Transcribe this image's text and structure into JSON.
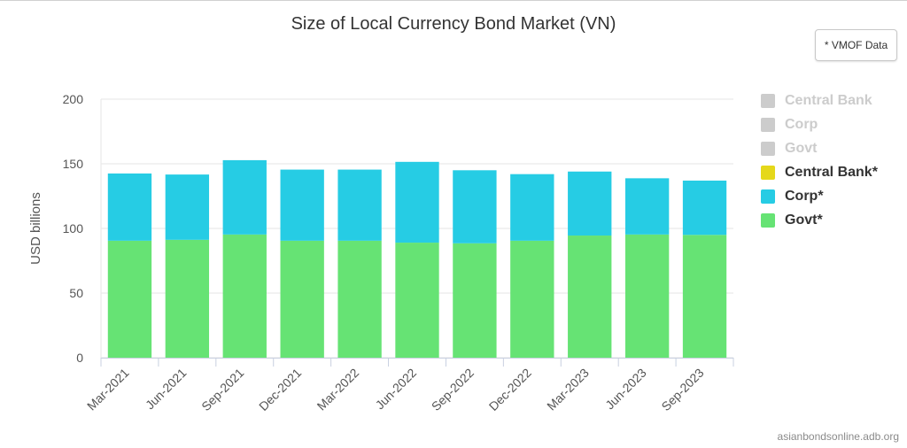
{
  "header": {
    "title": "Size of Local Currency Bond Market (VN)",
    "note_button": "* VMOF Data"
  },
  "footer": {
    "credit": "asianbondsonline.adb.org"
  },
  "colors": {
    "govt": "#66e374",
    "corp": "#26cce4",
    "central_bank": "#e5d81a",
    "inactive": "#cccccc",
    "axis_text": "#555555",
    "grid": "#e6e6e6",
    "axis_line": "#c8d0e0"
  },
  "legend": [
    {
      "label": "Central Bank",
      "state": "inactive",
      "color": "#cccccc"
    },
    {
      "label": "Corp",
      "state": "inactive",
      "color": "#cccccc"
    },
    {
      "label": "Govt",
      "state": "inactive",
      "color": "#cccccc"
    },
    {
      "label": "Central Bank*",
      "state": "active",
      "color": "#e5d81a"
    },
    {
      "label": "Corp*",
      "state": "active",
      "color": "#26cce4"
    },
    {
      "label": "Govt*",
      "state": "active",
      "color": "#66e374"
    }
  ],
  "chart_data": {
    "type": "bar",
    "stacked": true,
    "title": "Size of Local Currency Bond Market (VN)",
    "ylabel": "USD billions",
    "xlabel": "",
    "ylim": [
      0,
      200
    ],
    "yticks": [
      0,
      50,
      100,
      150,
      200
    ],
    "grid": true,
    "legend_position": "right",
    "categories": [
      "Mar-2021",
      "Jun-2021",
      "Sep-2021",
      "Dec-2021",
      "Mar-2022",
      "Jun-2022",
      "Sep-2022",
      "Dec-2022",
      "Mar-2023",
      "Jun-2023",
      "Sep-2023"
    ],
    "series": [
      {
        "name": "Govt*",
        "color": "#66e374",
        "values": [
          90.5,
          91.2,
          95.3,
          90.5,
          90.5,
          89.0,
          88.5,
          90.5,
          94.5,
          95.3,
          95.0
        ]
      },
      {
        "name": "Corp*",
        "color": "#26cce4",
        "values": [
          52.0,
          50.5,
          57.5,
          55.0,
          55.0,
          62.5,
          56.5,
          51.5,
          49.5,
          43.5,
          42.0
        ]
      },
      {
        "name": "Central Bank*",
        "color": "#e5d81a",
        "values": [
          0,
          0,
          0,
          0,
          0,
          0,
          0,
          0,
          0,
          0,
          0
        ]
      }
    ]
  }
}
